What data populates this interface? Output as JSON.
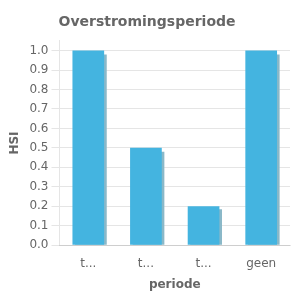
{
  "chart_data": {
    "type": "bar",
    "title": "Overstromingsperiode",
    "xlabel": "periode",
    "ylabel": "HSI",
    "categories": [
      "t...",
      "t...",
      "t...",
      "geen"
    ],
    "series": [
      {
        "color": "#8ab8c8",
        "values": [
          0.98,
          0.48,
          0.185,
          0.98
        ]
      },
      {
        "color": "#44b4e0",
        "values": [
          1.0,
          0.5,
          0.2,
          1.0
        ]
      }
    ],
    "ylim": [
      0.0,
      1.05
    ],
    "yticks": [
      {
        "value": 0.0,
        "label": "0.0"
      },
      0.1,
      0.2,
      0.3,
      0.4,
      0.5,
      0.6,
      0.7,
      0.8,
      0.9,
      {
        "value": 1.0,
        "label": "1.0"
      }
    ],
    "grid": true
  }
}
